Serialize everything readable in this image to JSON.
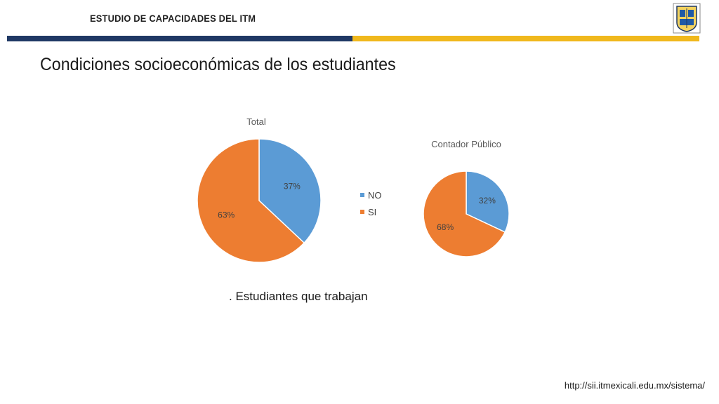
{
  "header": {
    "title": "ESTUDIO DE CAPACIDADES DEL ITM",
    "logo_icon": "itm-shield-logo-icon"
  },
  "colors": {
    "navy_bar": "#1f3864",
    "yellow_bar": "#f0b81c",
    "series_no": "#5b9bd5",
    "series_si": "#ed7d31"
  },
  "slide": {
    "title": "Condiciones socioeconómicas de los estudiantes",
    "caption": ". Estudiantes que trabajan",
    "url": "http://sii.itmexicali.edu.mx/sistema/"
  },
  "legend": {
    "placement": "between-charts",
    "items": [
      {
        "label": "NO",
        "color": "#5b9bd5"
      },
      {
        "label": "SI",
        "color": "#ed7d31"
      }
    ]
  },
  "chart_data": [
    {
      "type": "pie",
      "title": "Total",
      "categories": [
        "NO",
        "SI"
      ],
      "values": [
        37,
        63
      ],
      "labels": [
        "37%",
        "63%"
      ]
    },
    {
      "type": "pie",
      "title": "Contador Público",
      "categories": [
        "NO",
        "SI"
      ],
      "values": [
        32,
        68
      ],
      "labels": [
        "32%",
        "68%"
      ]
    }
  ]
}
